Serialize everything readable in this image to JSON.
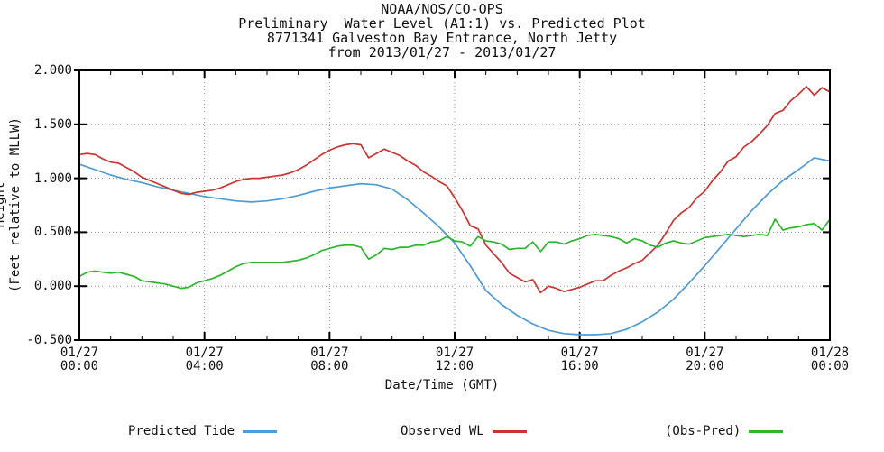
{
  "title": {
    "line1": "NOAA/NOS/CO-OPS",
    "line2": "Preliminary  Water Level (A1:1) vs. Predicted Plot",
    "line3": "8771341 Galveston Bay Entrance, North Jetty",
    "line4": "from 2013/01/27 - 2013/01/27"
  },
  "chart_data": {
    "type": "line",
    "xlabel": "Date/Time (GMT)",
    "ylabel_line1": "Height",
    "ylabel_line2": "(Feet relative to MLLW)",
    "xlim_hours": [
      0,
      24
    ],
    "ylim": [
      -0.5,
      2.0
    ],
    "grid": {
      "x_hours": [
        4,
        8,
        12,
        16,
        20
      ],
      "y_values": [
        1.5,
        1.0,
        0.5,
        0.0
      ],
      "color": "#8f8f8f"
    },
    "minor_xtick_step_hours": 1,
    "major_xtick_step_hours": 4,
    "xticks": [
      {
        "hour": 0,
        "date": "01/27",
        "time": "00:00"
      },
      {
        "hour": 4,
        "date": "01/27",
        "time": "04:00"
      },
      {
        "hour": 8,
        "date": "01/27",
        "time": "08:00"
      },
      {
        "hour": 12,
        "date": "01/27",
        "time": "12:00"
      },
      {
        "hour": 16,
        "date": "01/27",
        "time": "16:00"
      },
      {
        "hour": 20,
        "date": "01/27",
        "time": "20:00"
      },
      {
        "hour": 24,
        "date": "01/28",
        "time": "00:00"
      }
    ],
    "yticks": [
      {
        "value": 2.0,
        "label": "2.000"
      },
      {
        "value": 1.5,
        "label": "1.500"
      },
      {
        "value": 1.0,
        "label": "1.000"
      },
      {
        "value": 0.5,
        "label": "0.500"
      },
      {
        "value": 0.0,
        "label": "0.000"
      },
      {
        "value": -0.5,
        "label": "-0.500"
      }
    ],
    "series": [
      {
        "name": "Predicted Tide",
        "color": "#4f9bd5",
        "step_hours": 0.5,
        "values": [
          1.13,
          1.08,
          1.03,
          0.99,
          0.96,
          0.92,
          0.89,
          0.86,
          0.83,
          0.81,
          0.79,
          0.78,
          0.79,
          0.81,
          0.84,
          0.88,
          0.91,
          0.93,
          0.95,
          0.94,
          0.9,
          0.8,
          0.68,
          0.55,
          0.4,
          0.19,
          -0.04,
          -0.17,
          -0.27,
          -0.35,
          -0.41,
          -0.44,
          -0.45,
          -0.45,
          -0.44,
          -0.4,
          -0.33,
          -0.24,
          -0.12,
          0.03,
          0.19,
          0.36,
          0.53,
          0.7,
          0.85,
          0.98,
          1.08,
          1.19,
          1.16
        ]
      },
      {
        "name": "Observed WL",
        "color": "#cc3333",
        "step_hours": 0.25,
        "values": [
          1.22,
          1.23,
          1.22,
          1.18,
          1.15,
          1.14,
          1.1,
          1.06,
          1.01,
          0.98,
          0.95,
          0.92,
          0.89,
          0.86,
          0.85,
          0.87,
          0.88,
          0.89,
          0.91,
          0.94,
          0.97,
          0.99,
          1.0,
          1.0,
          1.01,
          1.02,
          1.03,
          1.05,
          1.08,
          1.12,
          1.17,
          1.22,
          1.26,
          1.29,
          1.31,
          1.32,
          1.31,
          1.19,
          1.23,
          1.27,
          1.24,
          1.21,
          1.16,
          1.12,
          1.06,
          1.02,
          0.97,
          0.93,
          0.82,
          0.7,
          0.56,
          0.53,
          0.38,
          0.3,
          0.22,
          0.12,
          0.08,
          0.04,
          0.06,
          -0.06,
          0.0,
          -0.02,
          -0.05,
          -0.03,
          -0.01,
          0.02,
          0.05,
          0.05,
          0.1,
          0.14,
          0.17,
          0.21,
          0.24,
          0.31,
          0.38,
          0.49,
          0.61,
          0.68,
          0.73,
          0.82,
          0.88,
          0.98,
          1.06,
          1.16,
          1.2,
          1.29,
          1.34,
          1.41,
          1.49,
          1.6,
          1.63,
          1.72,
          1.78,
          1.85,
          1.77,
          1.84,
          1.8
        ]
      },
      {
        "name": "(Obs-Pred)",
        "color": "#2db52d",
        "step_hours": 0.25,
        "values": [
          0.09,
          0.13,
          0.14,
          0.13,
          0.12,
          0.13,
          0.11,
          0.09,
          0.05,
          0.04,
          0.03,
          0.02,
          0.0,
          -0.02,
          -0.01,
          0.03,
          0.05,
          0.07,
          0.1,
          0.14,
          0.18,
          0.21,
          0.22,
          0.22,
          0.22,
          0.22,
          0.22,
          0.23,
          0.24,
          0.26,
          0.29,
          0.33,
          0.35,
          0.37,
          0.38,
          0.38,
          0.36,
          0.25,
          0.29,
          0.35,
          0.34,
          0.36,
          0.36,
          0.38,
          0.38,
          0.41,
          0.42,
          0.46,
          0.42,
          0.41,
          0.37,
          0.46,
          0.42,
          0.41,
          0.39,
          0.34,
          0.35,
          0.35,
          0.41,
          0.32,
          0.41,
          0.41,
          0.39,
          0.42,
          0.44,
          0.47,
          0.48,
          0.47,
          0.46,
          0.44,
          0.4,
          0.44,
          0.42,
          0.38,
          0.36,
          0.4,
          0.42,
          0.4,
          0.39,
          0.42,
          0.45,
          0.46,
          0.47,
          0.48,
          0.47,
          0.46,
          0.47,
          0.48,
          0.47,
          0.62,
          0.52,
          0.54,
          0.55,
          0.57,
          0.58,
          0.52,
          0.62
        ]
      }
    ]
  },
  "legend": {
    "entries": [
      {
        "label": "Predicted Tide",
        "color": "#4f9bd5"
      },
      {
        "label": "Observed WL",
        "color": "#cc3333"
      },
      {
        "label": "(Obs-Pred)",
        "color": "#2db52d"
      }
    ]
  }
}
